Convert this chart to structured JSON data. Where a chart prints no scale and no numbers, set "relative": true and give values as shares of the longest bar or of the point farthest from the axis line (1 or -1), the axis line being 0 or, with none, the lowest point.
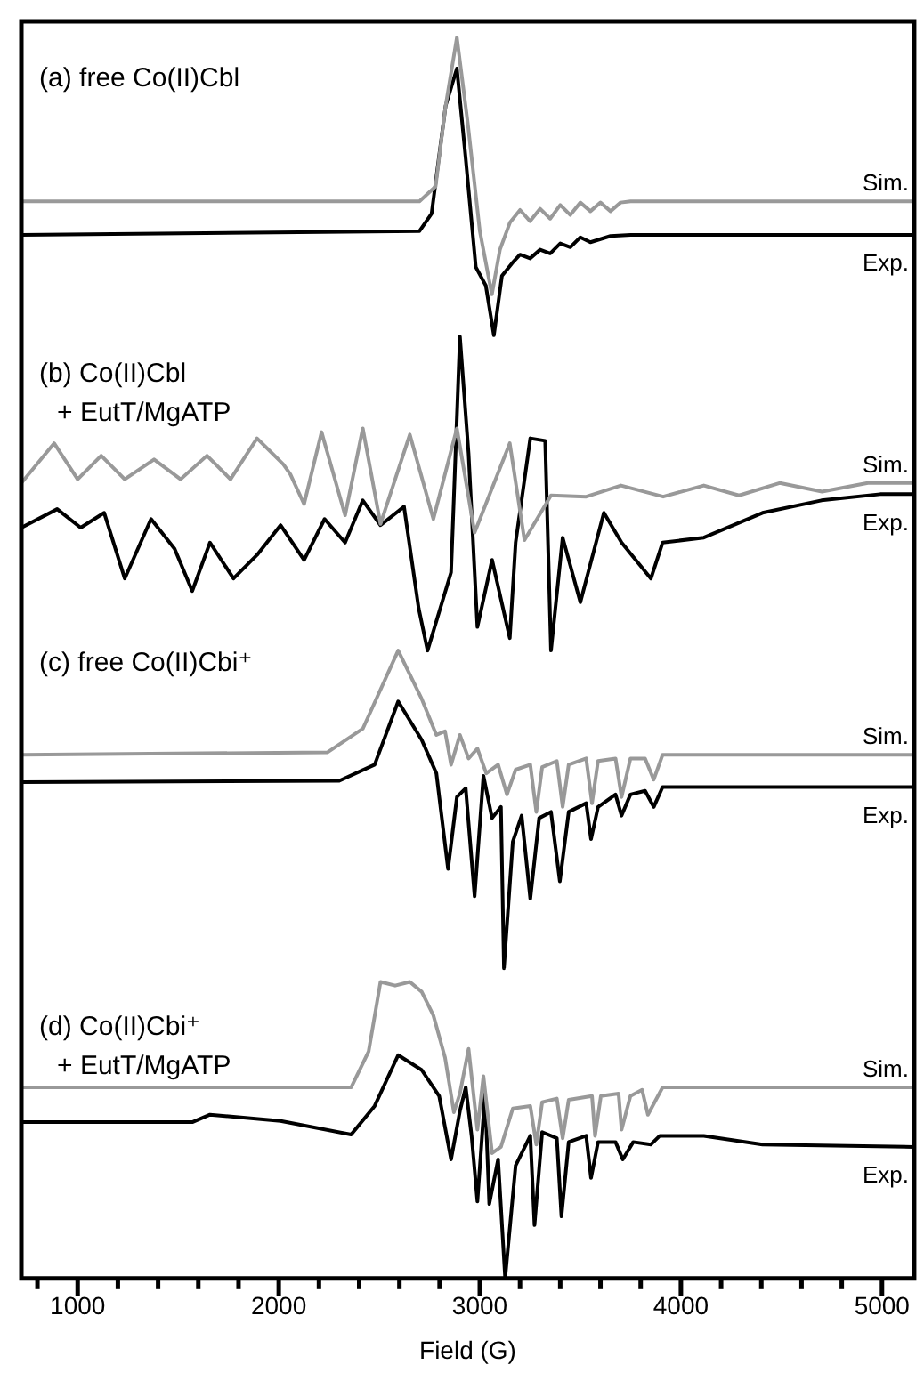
{
  "chart_data": {
    "type": "line",
    "relative": true,
    "xlabel": "Field (G)",
    "xlim": [
      720,
      5160
    ],
    "xticks": [
      {
        "value": 800,
        "label": null
      },
      1000,
      {
        "value": 1200,
        "label": null
      },
      {
        "value": 1400,
        "label": null
      },
      {
        "value": 1600,
        "label": null
      },
      {
        "value": 1800,
        "label": null
      },
      2000,
      {
        "value": 2200,
        "label": null
      },
      {
        "value": 2400,
        "label": null
      },
      {
        "value": 2600,
        "label": null
      },
      {
        "value": 2800,
        "label": null
      },
      3000,
      {
        "value": 3200,
        "label": null
      },
      {
        "value": 3400,
        "label": null
      },
      {
        "value": 3600,
        "label": null
      },
      {
        "value": 3800,
        "label": null
      },
      4000,
      {
        "value": 4200,
        "label": null
      },
      {
        "value": 4400,
        "label": null
      },
      {
        "value": 4600,
        "label": null
      },
      {
        "value": 4800,
        "label": null
      },
      5000
    ],
    "grid": false,
    "legend": false,
    "marker": "none",
    "line_style": "solid",
    "annotations": [
      "(a) free Co(II)Cbl",
      "(b) Co(II)Cbl\n+ EutT/MgATP",
      "(c) free Co(II)Cbi⁺",
      "(d) Co(II)Cbi⁺\n+ EutT/MgATP"
    ],
    "series": [
      {
        "name": "Sim.",
        "color": "#999999",
        "x": [
          720,
          2700,
          2780,
          2830,
          2886,
          2940,
          3000,
          3060,
          3100,
          3150,
          3200,
          3250,
          3300,
          3350,
          3400,
          3450,
          3500,
          3550,
          3600,
          3650,
          3700,
          3750,
          5160
        ],
        "values": [
          0.868,
          0.868,
          0.88,
          0.945,
          1,
          0.931,
          0.844,
          0.793,
          0.829,
          0.851,
          0.861,
          0.852,
          0.862,
          0.854,
          0.865,
          0.857,
          0.867,
          0.86,
          0.867,
          0.86,
          0.867,
          0.868,
          0.868
        ]
      },
      {
        "name": "Exp.",
        "color": "#000000",
        "x": [
          720,
          2700,
          2760,
          2830,
          2886,
          2930,
          2980,
          3030,
          3070,
          3110,
          3160,
          3200,
          3250,
          3300,
          3350,
          3400,
          3450,
          3500,
          3550,
          3650,
          3750,
          5160
        ],
        "values": [
          0.841,
          0.844,
          0.858,
          0.945,
          0.975,
          0.902,
          0.815,
          0.8,
          0.76,
          0.808,
          0.818,
          0.825,
          0.822,
          0.829,
          0.826,
          0.834,
          0.831,
          0.839,
          0.835,
          0.84,
          0.841,
          0.841
        ]
      },
      {
        "name": "Sim.",
        "color": "#999999",
        "x": [
          720,
          883,
          1000,
          1117,
          1234,
          1380,
          1512,
          1643,
          1760,
          1892,
          2023,
          2058,
          2126,
          2213,
          2330,
          2418,
          2506,
          2652,
          2769,
          2886,
          2974,
          3149,
          3222,
          3354,
          3529,
          3702,
          3912,
          4114,
          4289,
          4491,
          4702,
          4930,
          5158
        ],
        "values": [
          0.641,
          0.673,
          0.644,
          0.663,
          0.644,
          0.66,
          0.644,
          0.663,
          0.644,
          0.677,
          0.656,
          0.648,
          0.624,
          0.682,
          0.615,
          0.685,
          0.608,
          0.68,
          0.612,
          0.685,
          0.601,
          0.673,
          0.595,
          0.631,
          0.63,
          0.639,
          0.63,
          0.639,
          0.631,
          0.641,
          0.634,
          0.641,
          0.641
        ]
      },
      {
        "name": "Exp.",
        "color": "#000000",
        "x": [
          720,
          898,
          1015,
          1132,
          1234,
          1365,
          1482,
          1570,
          1658,
          1775,
          1892,
          2009,
          2126,
          2228,
          2330,
          2418,
          2506,
          2623,
          2696,
          2740,
          2857,
          2901,
          2944,
          2988,
          3061,
          3149,
          3178,
          3251,
          3325,
          3354,
          3412,
          3500,
          3617,
          3705,
          3851,
          3909,
          4114,
          4406,
          4699,
          4991,
          5158
        ],
        "values": [
          0.605,
          0.62,
          0.605,
          0.617,
          0.564,
          0.612,
          0.588,
          0.554,
          0.593,
          0.564,
          0.583,
          0.607,
          0.579,
          0.612,
          0.593,
          0.627,
          0.607,
          0.622,
          0.54,
          0.506,
          0.569,
          0.759,
          0.665,
          0.525,
          0.579,
          0.516,
          0.593,
          0.677,
          0.675,
          0.506,
          0.597,
          0.545,
          0.617,
          0.593,
          0.564,
          0.593,
          0.597,
          0.617,
          0.627,
          0.632,
          0.632
        ]
      },
      {
        "name": "Sim.",
        "color": "#999999",
        "x": [
          720,
          2243,
          2418,
          2594,
          2711,
          2784,
          2827,
          2857,
          2901,
          2944,
          2988,
          3032,
          3091,
          3135,
          3178,
          3251,
          3281,
          3310,
          3383,
          3412,
          3442,
          3529,
          3558,
          3588,
          3675,
          3705,
          3749,
          3822,
          3865,
          3909,
          5158
        ],
        "values": [
          0.422,
          0.424,
          0.443,
          0.506,
          0.467,
          0.438,
          0.441,
          0.414,
          0.438,
          0.419,
          0.427,
          0.407,
          0.414,
          0.39,
          0.41,
          0.414,
          0.376,
          0.412,
          0.417,
          0.38,
          0.414,
          0.419,
          0.383,
          0.417,
          0.419,
          0.388,
          0.419,
          0.419,
          0.402,
          0.422,
          0.422
        ]
      },
      {
        "name": "Exp.",
        "color": "#000000",
        "x": [
          720,
          2301,
          2477,
          2594,
          2711,
          2784,
          2842,
          2886,
          2930,
          2974,
          3018,
          3061,
          3105,
          3120,
          3164,
          3208,
          3251,
          3295,
          3354,
          3398,
          3442,
          3529,
          3553,
          3588,
          3675,
          3705,
          3749,
          3822,
          3865,
          3909,
          5158
        ],
        "values": [
          0.4,
          0.401,
          0.414,
          0.465,
          0.434,
          0.407,
          0.33,
          0.388,
          0.395,
          0.308,
          0.405,
          0.371,
          0.38,
          0.25,
          0.352,
          0.373,
          0.306,
          0.371,
          0.376,
          0.32,
          0.376,
          0.383,
          0.354,
          0.38,
          0.39,
          0.373,
          0.39,
          0.393,
          0.38,
          0.396,
          0.396
        ]
      },
      {
        "name": "Sim.",
        "color": "#999999",
        "x": [
          720,
          2360,
          2447,
          2506,
          2579,
          2652,
          2711,
          2769,
          2827,
          2871,
          2901,
          2944,
          2988,
          3018,
          3061,
          3105,
          3164,
          3251,
          3281,
          3310,
          3383,
          3412,
          3442,
          3558,
          3573,
          3602,
          3690,
          3705,
          3749,
          3807,
          3836,
          3909,
          5158
        ],
        "values": [
          0.154,
          0.154,
          0.183,
          0.239,
          0.236,
          0.239,
          0.231,
          0.212,
          0.178,
          0.134,
          0.149,
          0.185,
          0.12,
          0.163,
          0.101,
          0.106,
          0.137,
          0.139,
          0.108,
          0.142,
          0.145,
          0.113,
          0.144,
          0.147,
          0.115,
          0.147,
          0.149,
          0.12,
          0.147,
          0.152,
          0.132,
          0.154,
          0.154
        ]
      },
      {
        "name": "Exp.",
        "color": "#000000",
        "x": [
          720,
          1570,
          1658,
          2009,
          2360,
          2477,
          2594,
          2711,
          2798,
          2857,
          2901,
          2930,
          2959,
          2988,
          3026,
          3047,
          3091,
          3126,
          3178,
          3251,
          3272,
          3310,
          3383,
          3406,
          3442,
          3529,
          3553,
          3588,
          3675,
          3711,
          3763,
          3851,
          3895,
          4114,
          4406,
          5158
        ],
        "values": [
          0.126,
          0.126,
          0.132,
          0.127,
          0.116,
          0.139,
          0.18,
          0.168,
          0.147,
          0.096,
          0.135,
          0.154,
          0.115,
          0.062,
          0.149,
          0.06,
          0.096,
          0,
          0.091,
          0.115,
          0.043,
          0.118,
          0.113,
          0.05,
          0.11,
          0.115,
          0.081,
          0.11,
          0.11,
          0.096,
          0.11,
          0.108,
          0.115,
          0.115,
          0.108,
          0.106
        ]
      }
    ]
  }
}
